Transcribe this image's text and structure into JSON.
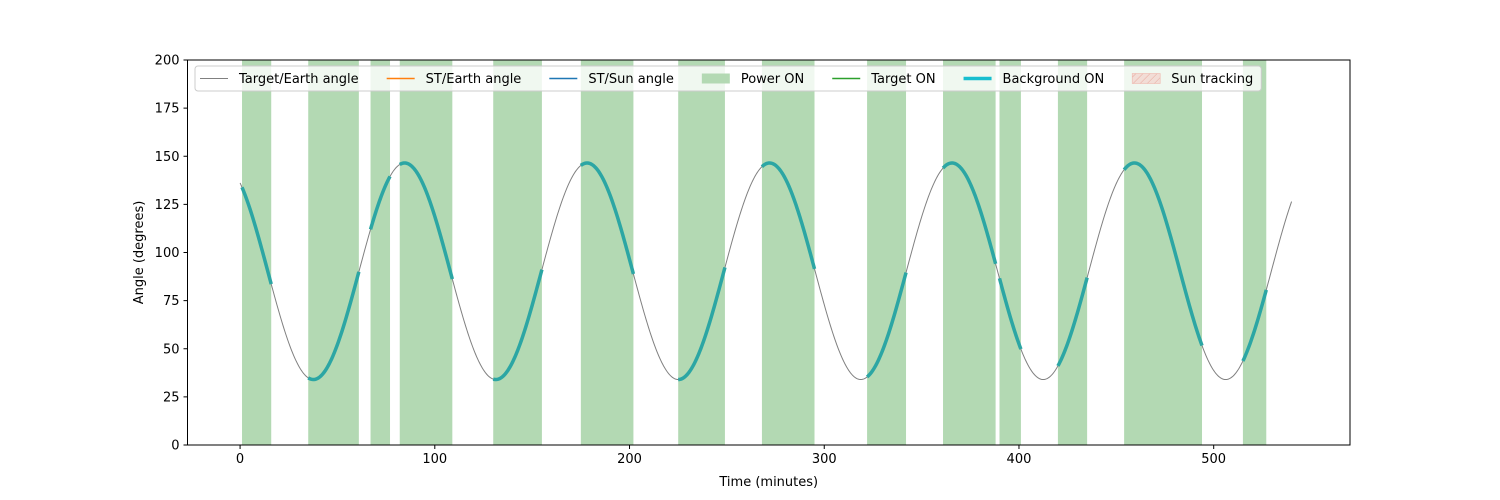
{
  "chart_data": {
    "type": "line",
    "title": "",
    "xlabel": "Time (minutes)",
    "ylabel": "Angle (degrees)",
    "xlim": [
      -27,
      570
    ],
    "ylim": [
      0,
      200
    ],
    "xticks": [
      0,
      100,
      200,
      300,
      400,
      500
    ],
    "yticks": [
      0,
      25,
      50,
      75,
      100,
      125,
      150,
      175,
      200
    ],
    "grid": false,
    "legend_placement": "top",
    "legend": [
      {
        "label": "Target/Earth angle",
        "kind": "line",
        "color": "#808080",
        "width": 1
      },
      {
        "label": "ST/Earth angle",
        "kind": "line",
        "color": "#ff7f0e",
        "width": 1.5
      },
      {
        "label": "ST/Sun angle",
        "kind": "line",
        "color": "#1f77b4",
        "width": 1.5
      },
      {
        "label": "Power ON",
        "kind": "patch",
        "color": "#b3d9b3"
      },
      {
        "label": "Target ON",
        "kind": "line",
        "color": "#2ca02c",
        "width": 1.5
      },
      {
        "label": "Background ON",
        "kind": "line",
        "color": "#17becf",
        "width": 3.5
      },
      {
        "label": "Sun tracking",
        "kind": "hatch",
        "color": "#f4c7c0"
      }
    ],
    "target_earth_angle": {
      "x_range": [
        0,
        540
      ],
      "mean": 90.25,
      "amplitude": 56.25,
      "period": 93.7,
      "peak_times": [
        84.5,
        178.2,
        271.9,
        365.6,
        459.3
      ],
      "trough_times": [
        37.65,
        131.35,
        225.05,
        318.75,
        412.45,
        506.15
      ],
      "max_value": 146.5,
      "min_value": 34.0,
      "end_value": 119
    },
    "power_on_intervals": [
      [
        1,
        16
      ],
      [
        35,
        61
      ],
      [
        67,
        77
      ],
      [
        82,
        109
      ],
      [
        130,
        155
      ],
      [
        175,
        202
      ],
      [
        225,
        249
      ],
      [
        268,
        295
      ],
      [
        322,
        342
      ],
      [
        361,
        388
      ],
      [
        390,
        401
      ],
      [
        420,
        435
      ],
      [
        454,
        494
      ],
      [
        515,
        527
      ]
    ],
    "background_on_color": "#2ca6a4",
    "series": []
  }
}
